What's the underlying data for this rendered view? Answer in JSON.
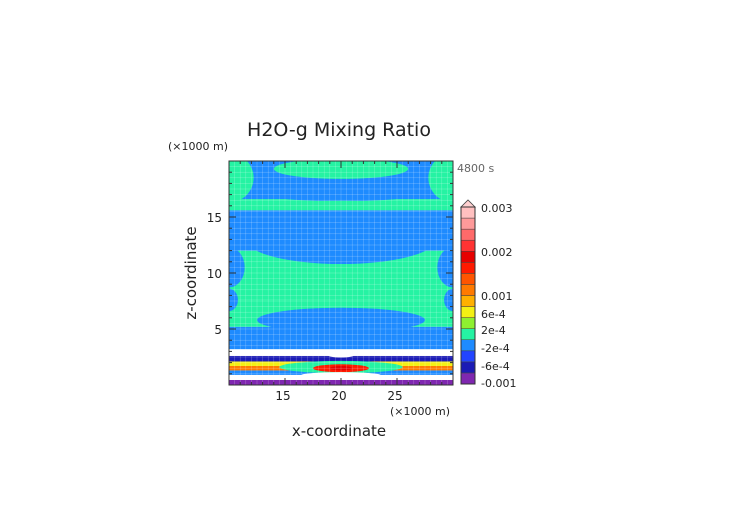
{
  "chart_data": {
    "type": "heatmap",
    "title": "H2O-g Mixing Ratio",
    "time_label": "4800 s",
    "xlabel": "x-coordinate",
    "ylabel": "z-coordinate",
    "x_unit": "(×1000 m)",
    "z_unit": "(×1000 m)",
    "xlim": [
      10,
      30
    ],
    "zlim": [
      0,
      20
    ],
    "x_ticks": [
      "15",
      "20",
      "25"
    ],
    "z_ticks": [
      "5",
      "10",
      "15"
    ],
    "x_tick_values": [
      15,
      20,
      25
    ],
    "z_tick_values": [
      5,
      10,
      15
    ],
    "colorbar": {
      "labels": [
        "0.003",
        "0.002",
        "0.001",
        "6e-4",
        "2e-4",
        "-2e-4",
        "-6e-4",
        "-0.001"
      ],
      "label_positions": [
        8,
        6,
        4,
        3,
        2,
        1,
        0,
        -1
      ],
      "colors": [
        "#7f27b0",
        "#1b1bb5",
        "#2244ff",
        "#1e8bff",
        "#25f3a3",
        "#8ef030",
        "#f4f014",
        "#ffb000",
        "#ff7a00",
        "#ff5500",
        "#ff1a00",
        "#e60000",
        "#ff3333",
        "#ff6a6a",
        "#ff9a9a",
        "#ffc0c0"
      ]
    },
    "bands": [
      {
        "z0": 0.0,
        "z1": 0.45,
        "color": "#7f27b0"
      },
      {
        "z0": 0.45,
        "z1": 0.9,
        "color": "#ffffff"
      },
      {
        "z0": 0.9,
        "z1": 1.3,
        "color": "#1e8bff"
      },
      {
        "z0": 1.3,
        "z1": 1.7,
        "color": "#ff7a00"
      },
      {
        "z0": 1.7,
        "z1": 2.1,
        "color": "#f4f014"
      },
      {
        "z0": 2.1,
        "z1": 2.6,
        "color": "#1b1bb5"
      },
      {
        "z0": 2.6,
        "z1": 3.2,
        "color": "#ffffff"
      },
      {
        "z0": 3.2,
        "z1": 5.2,
        "color": "#1e8bff"
      },
      {
        "z0": 5.2,
        "z1": 7.6,
        "color": "#25f3a3"
      },
      {
        "z0": 7.6,
        "z1": 12.0,
        "color": "#25f3a3"
      },
      {
        "z0": 12.0,
        "z1": 15.6,
        "color": "#1e8bff"
      },
      {
        "z0": 15.6,
        "z1": 16.6,
        "color": "#25f3a3"
      },
      {
        "z0": 16.6,
        "z1": 20.0,
        "color": "#1e8bff"
      }
    ]
  }
}
